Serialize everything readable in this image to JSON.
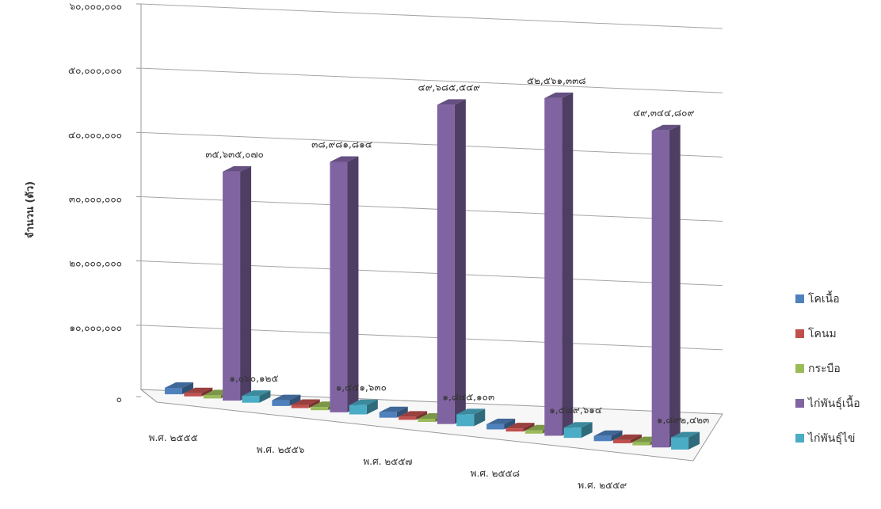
{
  "chart_data": {
    "type": "bar",
    "title": "",
    "ylabel": "จำนวน (ตัว)",
    "xlabel": "",
    "ylim": [
      0,
      60000000
    ],
    "y_ticks": [
      0,
      10000000,
      20000000,
      30000000,
      40000000,
      50000000,
      60000000
    ],
    "y_tick_labels": [
      "๐",
      "๑๐,๐๐๐,๐๐๐",
      "๒๐,๐๐๐,๐๐๐",
      "๓๐,๐๐๐,๐๐๐",
      "๔๐,๐๐๐,๐๐๐",
      "๕๐,๐๐๐,๐๐๐",
      "๖๐,๐๐๐,๐๐๐"
    ],
    "grid": true,
    "legend_position": "right",
    "categories": [
      "พ.ศ. ๒๕๕๕",
      "พ.ศ. ๒๕๕๖",
      "พ.ศ. ๒๕๕๗",
      "พ.ศ. ๒๕๕๘",
      "พ.ศ. ๒๕๕๙"
    ],
    "series": [
      {
        "name": "โคเนื้อ",
        "color": "#4f81bd",
        "values": [
          1000000,
          900000,
          850000,
          820000,
          800000
        ]
      },
      {
        "name": "โคนม",
        "color": "#c0504d",
        "values": [
          400000,
          380000,
          380000,
          380000,
          380000
        ]
      },
      {
        "name": "กระบือ",
        "color": "#9bbb59",
        "values": [
          200000,
          180000,
          170000,
          170000,
          160000
        ]
      },
      {
        "name": "ไก่พันธุ์เนื้อ",
        "color": "#8064a2",
        "values": [
          35635070,
          38981814,
          49685549,
          52561338,
          49344809
        ]
      },
      {
        "name": "ไก่พันธุ์ไข่",
        "color": "#4bacc6",
        "values": [
          1060125,
          1451630,
          1845103,
          1589614,
          1892423
        ]
      }
    ],
    "data_labels": {
      "ไก่พันธุ์เนื้อ": [
        "๓๕,๖๓๕,๐๗๐",
        "๓๘,๙๘๑,๘๑๔",
        "๔๙,๖๘๕,๕๔๙",
        "๕๒,๕๖๑,๓๓๘",
        "๔๙,๓๔๔,๘๐๙"
      ],
      "ไก่พันธุ์ไข่": [
        "๑,๐๖๐,๑๒๕",
        "๑,๔๕๑,๖๓๐",
        "๑,๘๔๕,๑๐๓",
        "๑,๕๘๙,๖๑๔",
        "๑,๘๙๒,๔๒๓"
      ]
    }
  }
}
